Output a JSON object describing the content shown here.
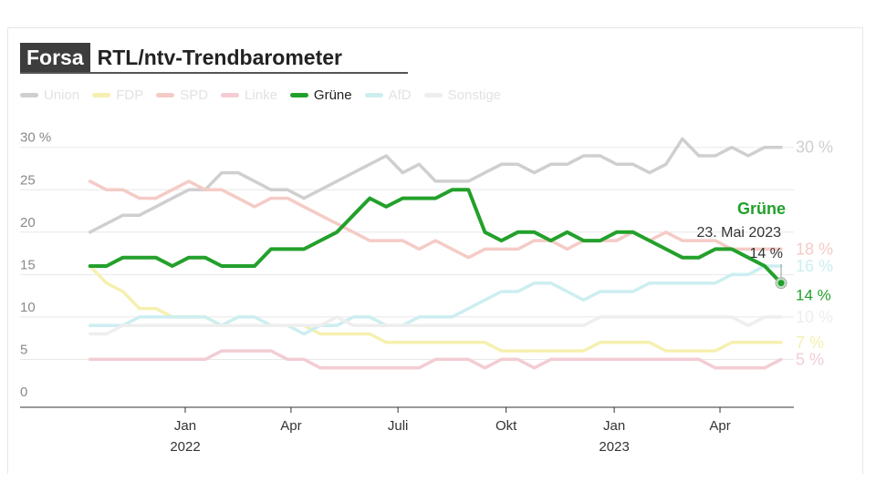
{
  "header": {
    "brand": "Forsa",
    "title": "RTL/ntv-Trendbarometer"
  },
  "chart_data": {
    "type": "line",
    "title": "RTL/ntv-Trendbarometer",
    "ylim": [
      0,
      30
    ],
    "y_ticks": [
      "30 %",
      "25",
      "20",
      "15",
      "10",
      "5",
      "0"
    ],
    "y_tick_values": [
      30,
      25,
      20,
      15,
      10,
      5,
      0
    ],
    "x_ticks": [
      {
        "label": "Jan",
        "year": "2022",
        "date": "2022-01-01"
      },
      {
        "label": "Apr",
        "date": "2022-04-01"
      },
      {
        "label": "Juli",
        "date": "2022-07-01"
      },
      {
        "label": "Okt",
        "date": "2022-10-01"
      },
      {
        "label": "Jan",
        "year": "2023",
        "date": "2023-01-01"
      },
      {
        "label": "Apr",
        "date": "2023-04-01"
      }
    ],
    "grid": true,
    "legend_placement": "top-left",
    "highlighted": "Grüne",
    "x": [
      "2021-10-12",
      "2021-10-26",
      "2021-11-09",
      "2021-11-23",
      "2021-12-07",
      "2021-12-21",
      "2022-01-04",
      "2022-01-18",
      "2022-02-01",
      "2022-02-15",
      "2022-03-01",
      "2022-03-15",
      "2022-03-29",
      "2022-04-12",
      "2022-04-26",
      "2022-05-10",
      "2022-05-24",
      "2022-06-07",
      "2022-06-21",
      "2022-07-05",
      "2022-07-19",
      "2022-08-02",
      "2022-08-16",
      "2022-08-30",
      "2022-09-13",
      "2022-09-27",
      "2022-10-11",
      "2022-10-25",
      "2022-11-08",
      "2022-11-22",
      "2022-12-06",
      "2022-12-20",
      "2023-01-03",
      "2023-01-17",
      "2023-01-31",
      "2023-02-14",
      "2023-02-28",
      "2023-03-14",
      "2023-03-28",
      "2023-04-11",
      "2023-04-25",
      "2023-05-09",
      "2023-05-23"
    ],
    "series": [
      {
        "name": "Union",
        "color": "#cfcfcf",
        "end_label": "30 %",
        "values": [
          20,
          21,
          22,
          22,
          23,
          24,
          25,
          25,
          27,
          27,
          26,
          25,
          25,
          24,
          25,
          26,
          27,
          28,
          29,
          27,
          28,
          26,
          26,
          26,
          27,
          28,
          28,
          27,
          28,
          28,
          29,
          29,
          28,
          28,
          27,
          28,
          31,
          29,
          29,
          30,
          29,
          30,
          30
        ]
      },
      {
        "name": "FDP",
        "color": "#f6f0b0",
        "end_label": "7 %",
        "values": [
          16,
          14,
          13,
          11,
          11,
          10,
          10,
          10,
          9,
          9,
          9,
          9,
          9,
          9,
          8,
          8,
          8,
          8,
          7,
          7,
          7,
          7,
          7,
          7,
          7,
          6,
          6,
          6,
          6,
          6,
          6,
          7,
          7,
          7,
          7,
          6,
          6,
          6,
          6,
          7,
          7,
          7,
          7
        ]
      },
      {
        "name": "SPD",
        "color": "#f5cbc6",
        "end_label": "18 %",
        "values": [
          26,
          25,
          25,
          24,
          24,
          25,
          26,
          25,
          25,
          24,
          23,
          24,
          24,
          23,
          22,
          21,
          20,
          19,
          19,
          19,
          18,
          19,
          18,
          17,
          18,
          18,
          18,
          19,
          19,
          18,
          19,
          19,
          19,
          20,
          19,
          20,
          19,
          19,
          19,
          18,
          18,
          18,
          18
        ]
      },
      {
        "name": "Linke",
        "color": "#f3cdd3",
        "end_label": "5 %",
        "values": [
          5,
          5,
          5,
          5,
          5,
          5,
          5,
          5,
          6,
          6,
          6,
          6,
          5,
          5,
          4,
          4,
          4,
          4,
          4,
          4,
          4,
          5,
          5,
          5,
          4,
          5,
          5,
          4,
          5,
          5,
          5,
          5,
          5,
          5,
          5,
          5,
          5,
          5,
          4,
          4,
          4,
          4,
          5
        ]
      },
      {
        "name": "Grüne",
        "color": "#23a02b",
        "end_label": "14 %",
        "values": [
          16,
          16,
          17,
          17,
          17,
          16,
          17,
          17,
          16,
          16,
          16,
          18,
          18,
          18,
          19,
          20,
          22,
          24,
          23,
          24,
          24,
          24,
          25,
          25,
          20,
          19,
          20,
          20,
          19,
          20,
          19,
          19,
          20,
          20,
          19,
          18,
          17,
          17,
          18,
          18,
          17,
          16,
          14
        ]
      },
      {
        "name": "AfD",
        "color": "#cdeef0",
        "end_label": "16 %",
        "values": [
          9,
          9,
          9,
          10,
          10,
          10,
          10,
          10,
          9,
          10,
          10,
          9,
          9,
          8,
          9,
          9,
          10,
          10,
          9,
          9,
          10,
          10,
          10,
          11,
          12,
          13,
          13,
          14,
          14,
          13,
          12,
          13,
          13,
          13,
          14,
          14,
          14,
          14,
          14,
          15,
          15,
          16,
          16
        ]
      },
      {
        "name": "Sonstige",
        "color": "#eeeeee",
        "end_label": "10 %",
        "values": [
          8,
          8,
          9,
          9,
          9,
          9,
          9,
          9,
          9,
          9,
          9,
          9,
          9,
          9,
          9,
          10,
          9,
          9,
          9,
          9,
          9,
          9,
          9,
          9,
          9,
          9,
          9,
          9,
          9,
          9,
          9,
          10,
          10,
          10,
          10,
          10,
          10,
          10,
          10,
          10,
          9,
          10,
          10
        ]
      }
    ],
    "tooltip": {
      "series": "Grüne",
      "date": "23. Mai 2023",
      "value": "14 %"
    }
  }
}
